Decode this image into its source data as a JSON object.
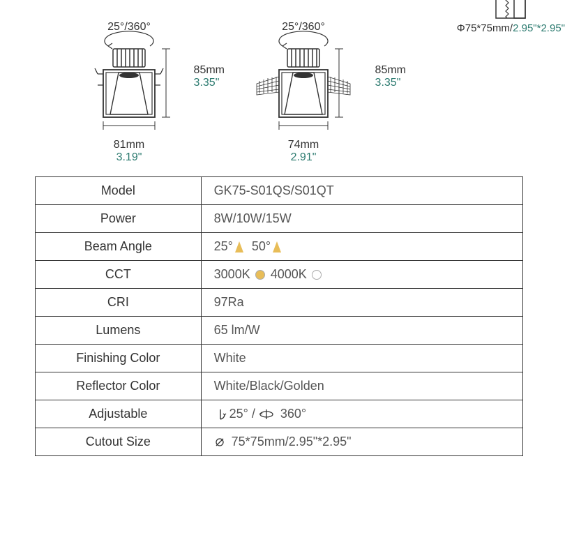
{
  "diagrams": {
    "angle_label": "25°/360°",
    "left": {
      "height_mm": "85mm",
      "height_in": "3.35\"",
      "width_mm": "81mm",
      "width_in": "3.19\""
    },
    "right": {
      "height_mm": "85mm",
      "height_in": "3.35\"",
      "width_mm": "74mm",
      "width_in": "2.91\""
    }
  },
  "cutout_icon": {
    "mm": "Φ75*75mm/",
    "in": "2.95\"*2.95\""
  },
  "colors": {
    "text": "#333333",
    "accent": "#2b7a6f",
    "cone": "#e8bd58",
    "cct_warm": "#e8bd58",
    "cct_cool": "#ffffff",
    "border": "#333333"
  },
  "table": {
    "rows": [
      {
        "label": "Model",
        "value": "GK75-S01QS/S01QT",
        "type": "text"
      },
      {
        "label": "Power",
        "value": "8W/10W/15W",
        "type": "text"
      },
      {
        "label": "Beam Angle",
        "type": "beam",
        "angles": [
          "25°",
          "50°"
        ]
      },
      {
        "label": "CCT",
        "type": "cct",
        "options": [
          {
            "label": "3000K",
            "color": "#e8bd58"
          },
          {
            "label": "4000K",
            "color": "#ffffff"
          }
        ]
      },
      {
        "label": "CRI",
        "value": "97Ra",
        "type": "text"
      },
      {
        "label": "Lumens",
        "value": "65 lm/W",
        "type": "text"
      },
      {
        "label": "Finishing Color",
        "value": "White",
        "type": "text"
      },
      {
        "label": "Reflector Color",
        "value": "White/Black/Golden",
        "type": "text"
      },
      {
        "label": "Adjustable",
        "type": "adjustable",
        "tilt": "25°",
        "rotate": "360°"
      },
      {
        "label": "Cutout Size",
        "type": "cutout",
        "value": "75*75mm/2.95\"*2.95\""
      }
    ]
  }
}
